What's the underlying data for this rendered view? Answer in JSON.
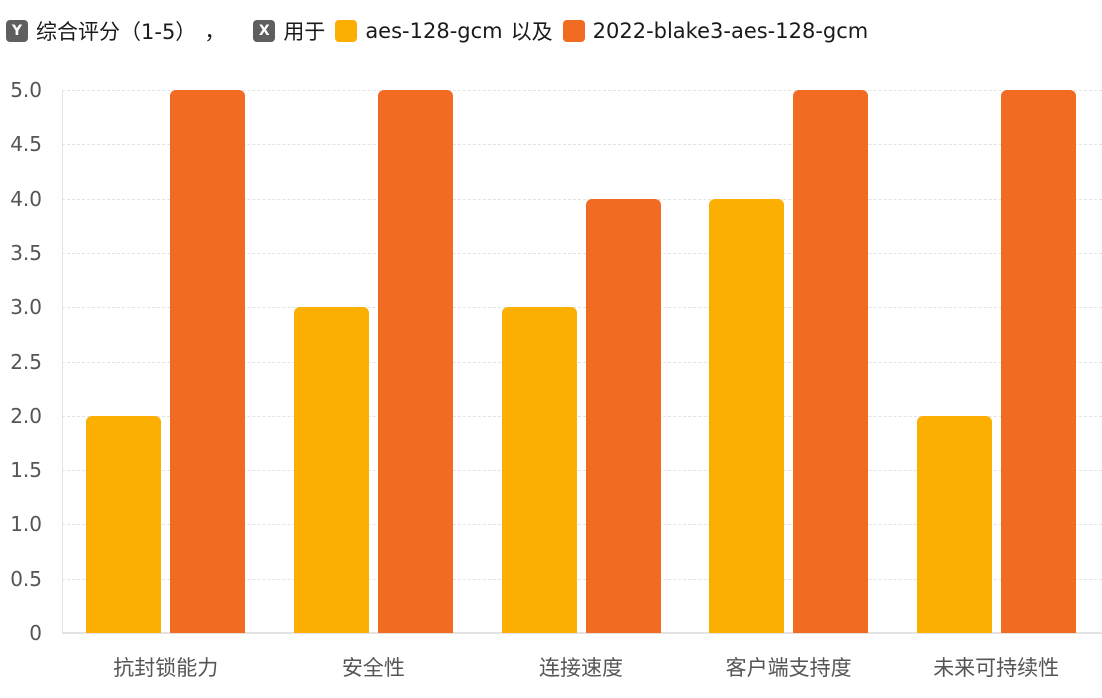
{
  "legend": {
    "y_badge": "Y",
    "y_label": "综合评分（1-5）",
    "separator": "，",
    "x_badge": "X",
    "x_label": "用于",
    "series_a": "aes-128-gcm",
    "joiner": "以及",
    "series_b": "2022-blake3-aes-128-gcm"
  },
  "colors": {
    "series_a": "#FBAF03",
    "series_b": "#F26B22",
    "badge": "#5F5F5F",
    "grid": "#E3E3E3"
  },
  "chart_data": {
    "type": "bar",
    "title": "",
    "xlabel": "",
    "ylabel": "综合评分（1-5）",
    "categories": [
      "抗封锁能力",
      "安全性",
      "连接速度",
      "客户端支持度",
      "未来可持续性"
    ],
    "series": [
      {
        "name": "aes-128-gcm",
        "color": "#FBAF03",
        "values": [
          2,
          3,
          3,
          4,
          2
        ]
      },
      {
        "name": "2022-blake3-aes-128-gcm",
        "color": "#F26B22",
        "values": [
          5,
          5,
          4,
          5,
          5
        ]
      }
    ],
    "ylim": [
      0,
      5
    ],
    "yticks": [
      "0",
      "0.5",
      "1.0",
      "1.5",
      "2.0",
      "2.5",
      "3.0",
      "3.5",
      "4.0",
      "4.5",
      "5.0"
    ],
    "grid": true,
    "legend_position": "top-left"
  }
}
